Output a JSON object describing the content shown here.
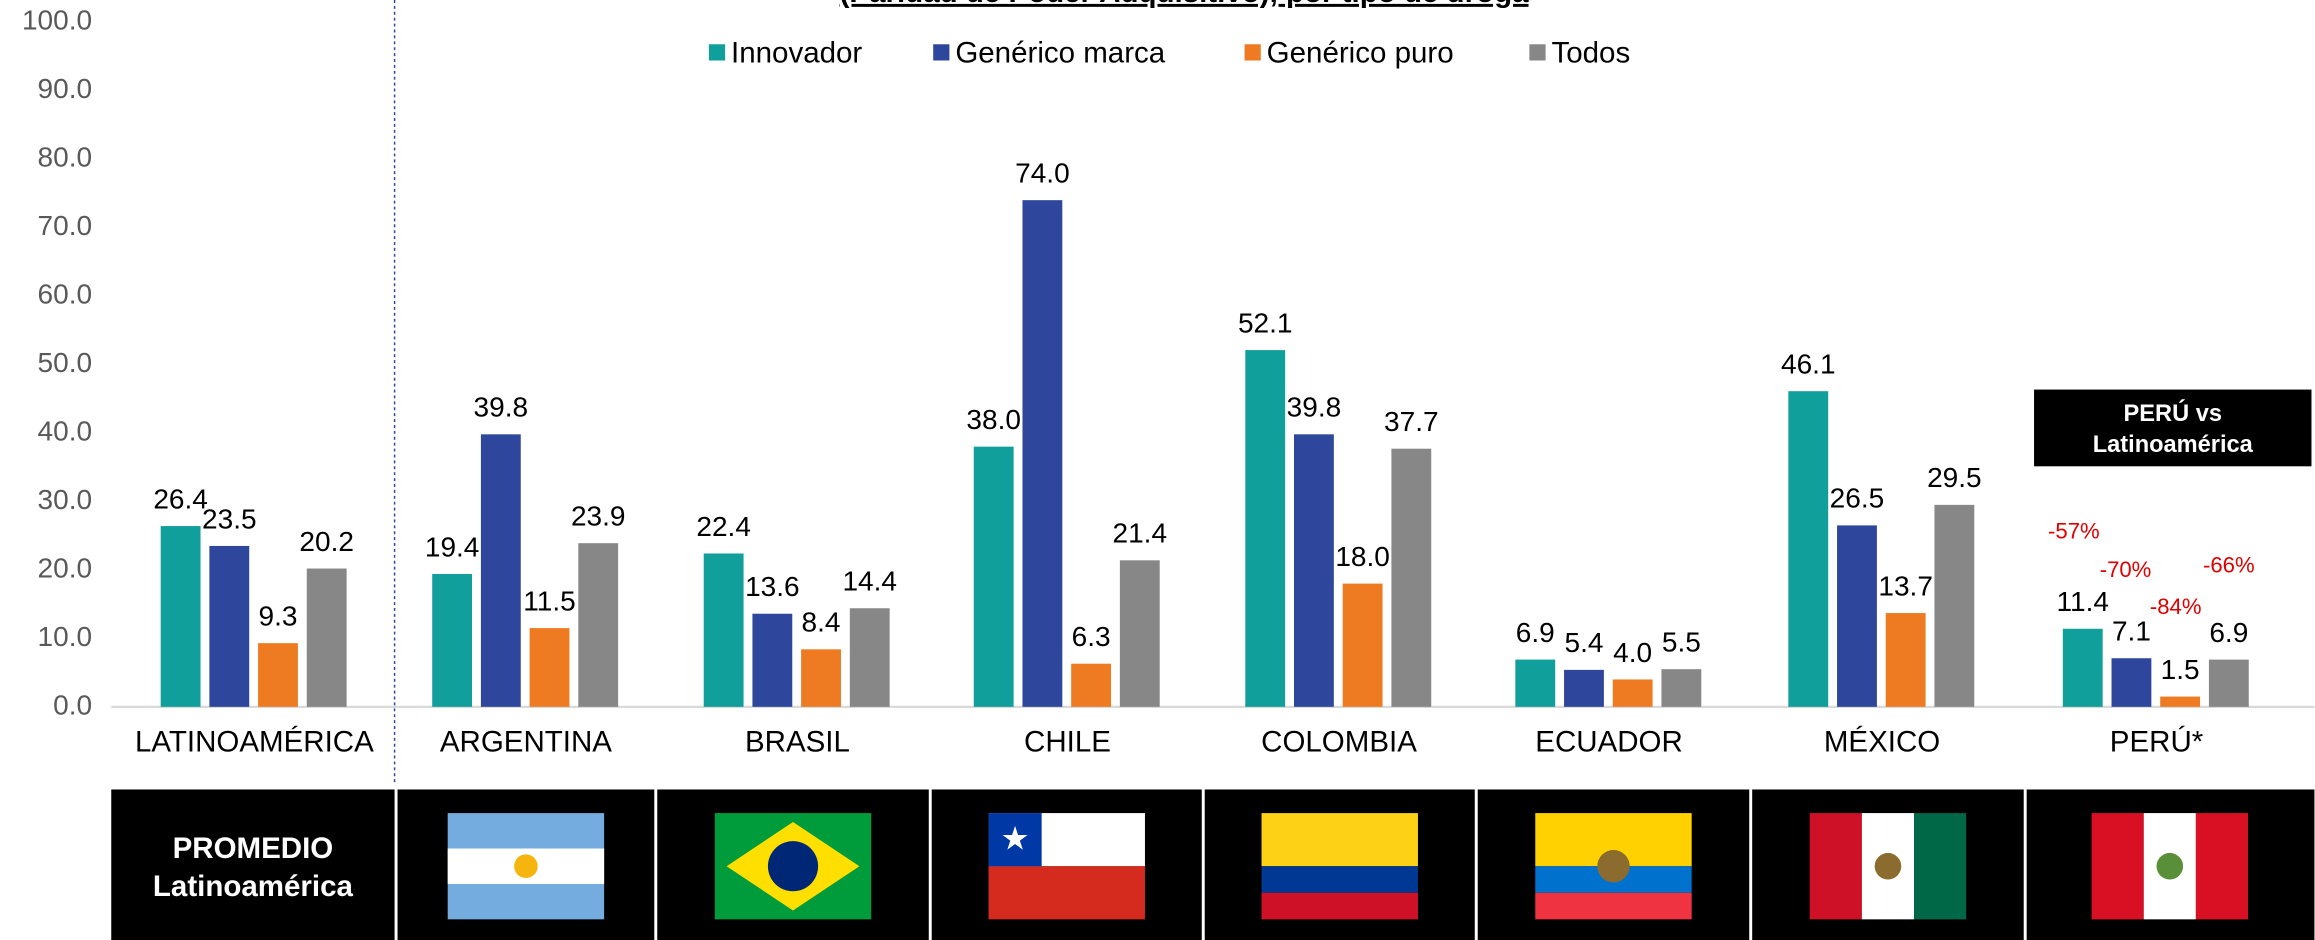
{
  "chart_data": {
    "type": "bar",
    "title": "(Paridad de Poder Adquisitivo), por tipo de droga",
    "categories": [
      "LATINOAMÉRICA",
      "ARGENTINA",
      "BRASIL",
      "CHILE",
      "COLOMBIA",
      "ECUADOR",
      "MÉXICO",
      "PERÚ*"
    ],
    "series": [
      {
        "name": "Innovador",
        "color": "#109f9b",
        "values": [
          26.4,
          19.4,
          22.4,
          38.0,
          52.1,
          6.9,
          46.1,
          11.4
        ],
        "value_labels": [
          "26.4",
          "19.4",
          "22.4",
          "38.0",
          "52.1",
          "6.9",
          "46.1",
          "11.4"
        ]
      },
      {
        "name": "Genérico marca",
        "color": "#2e479c",
        "values": [
          23.5,
          39.8,
          13.6,
          74.0,
          39.8,
          5.4,
          26.5,
          7.1
        ],
        "value_labels": [
          "23.5",
          "39.8",
          "13.6",
          "74.0",
          "39.8",
          "5.4",
          "26.5",
          "7.1"
        ]
      },
      {
        "name": "Genérico puro",
        "color": "#ee7b22",
        "values": [
          9.3,
          11.5,
          8.4,
          6.3,
          18.0,
          4.0,
          13.7,
          1.5
        ],
        "value_labels": [
          "9.3",
          "11.5",
          "8.4",
          "6.3",
          "18.0",
          "4.0",
          "13.7",
          "1.5"
        ]
      },
      {
        "name": "Todos",
        "color": "#878787",
        "values": [
          20.2,
          23.9,
          14.4,
          21.4,
          37.7,
          5.5,
          29.5,
          6.9
        ],
        "value_labels": [
          "20.2",
          "23.9",
          "14.4",
          "21.4",
          "37.7",
          "5.5",
          "29.5",
          "6.9"
        ]
      }
    ],
    "ylim": [
      0,
      100
    ],
    "yticks": [
      {
        "value": 0,
        "label": "0.0"
      },
      {
        "value": 10,
        "label": "10.0"
      },
      {
        "value": 20,
        "label": "20.0"
      },
      {
        "value": 30,
        "label": "30.0"
      },
      {
        "value": 40,
        "label": "40.0"
      },
      {
        "value": 50,
        "label": "50.0"
      },
      {
        "value": 60,
        "label": "60.0"
      },
      {
        "value": 70,
        "label": "70.0"
      },
      {
        "value": 80,
        "label": "80.0"
      },
      {
        "value": 90,
        "label": "90.0"
      },
      {
        "value": {
          "value": 100,
          "label": "100.0"
        },
        "label": "100.0"
      }
    ],
    "legend": "top",
    "annotations": {
      "box": [
        "PERÚ vs",
        "Latinoamérica"
      ],
      "changes": [
        "-57%",
        "-70%",
        "-84%",
        "-66%"
      ]
    },
    "panel_label": [
      "PROMEDIO",
      "Latinoamérica"
    ]
  }
}
